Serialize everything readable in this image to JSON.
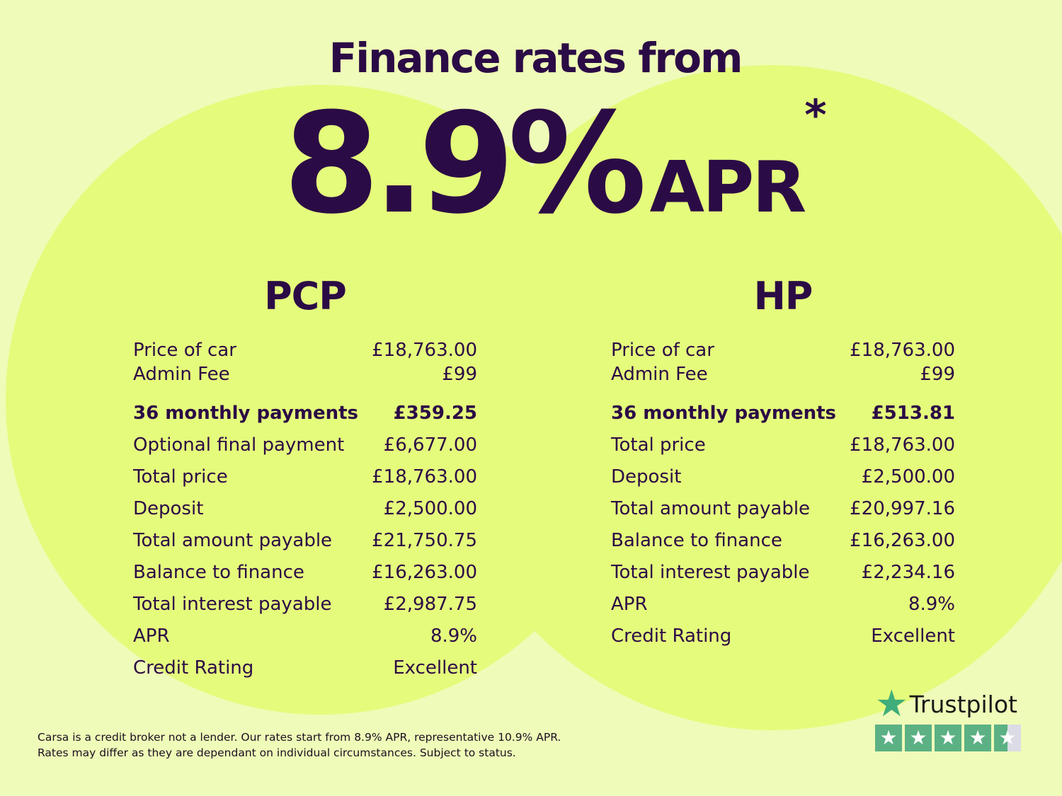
{
  "headline": {
    "title": "Finance rates from",
    "rate": "8.9%",
    "apr": "APR",
    "asterisk": "*"
  },
  "pcp": {
    "heading": "PCP",
    "rows": [
      {
        "label": "Price of car",
        "value": "£18,763.00"
      },
      {
        "label": "Admin Fee",
        "value": "£99"
      },
      {
        "label": "36 monthly payments",
        "value": "£359.25",
        "bold": true
      },
      {
        "label": "Optional final payment",
        "value": "£6,677.00"
      },
      {
        "label": "Total price",
        "value": "£18,763.00"
      },
      {
        "label": "Deposit",
        "value": "£2,500.00"
      },
      {
        "label": "Total amount payable",
        "value": "£21,750.75"
      },
      {
        "label": "Balance to finance",
        "value": "£16,263.00"
      },
      {
        "label": "Total interest payable",
        "value": "£2,987.75"
      },
      {
        "label": "APR",
        "value": "8.9%"
      },
      {
        "label": "Credit Rating",
        "value": "Excellent"
      }
    ]
  },
  "hp": {
    "heading": "HP",
    "rows": [
      {
        "label": "Price of car",
        "value": "£18,763.00"
      },
      {
        "label": "Admin Fee",
        "value": "£99"
      },
      {
        "label": "36 monthly payments",
        "value": "£513.81",
        "bold": true
      },
      {
        "label": "Total price",
        "value": "£18,763.00"
      },
      {
        "label": "Deposit",
        "value": "£2,500.00"
      },
      {
        "label": "Total amount payable",
        "value": "£20,997.16"
      },
      {
        "label": "Balance to finance",
        "value": "£16,263.00"
      },
      {
        "label": "Total interest payable",
        "value": "£2,234.16"
      },
      {
        "label": "APR",
        "value": "8.9%"
      },
      {
        "label": "Credit Rating",
        "value": "Excellent"
      }
    ]
  },
  "disclaimer": [
    "Carsa is a credit broker not a lender. Our rates start from 8.9% APR, representative 10.9% APR.",
    "Rates may differ as they are dependant on individual circumstances. Subject to status."
  ],
  "trustpilot": {
    "name": "Trustpilot",
    "rating_stars": 4.5,
    "icon": "star-icon",
    "brand_color": "#5bb184"
  },
  "colors": {
    "background": "#effbb8",
    "circle": "#e5fb7c",
    "text": "#2b0b45"
  }
}
